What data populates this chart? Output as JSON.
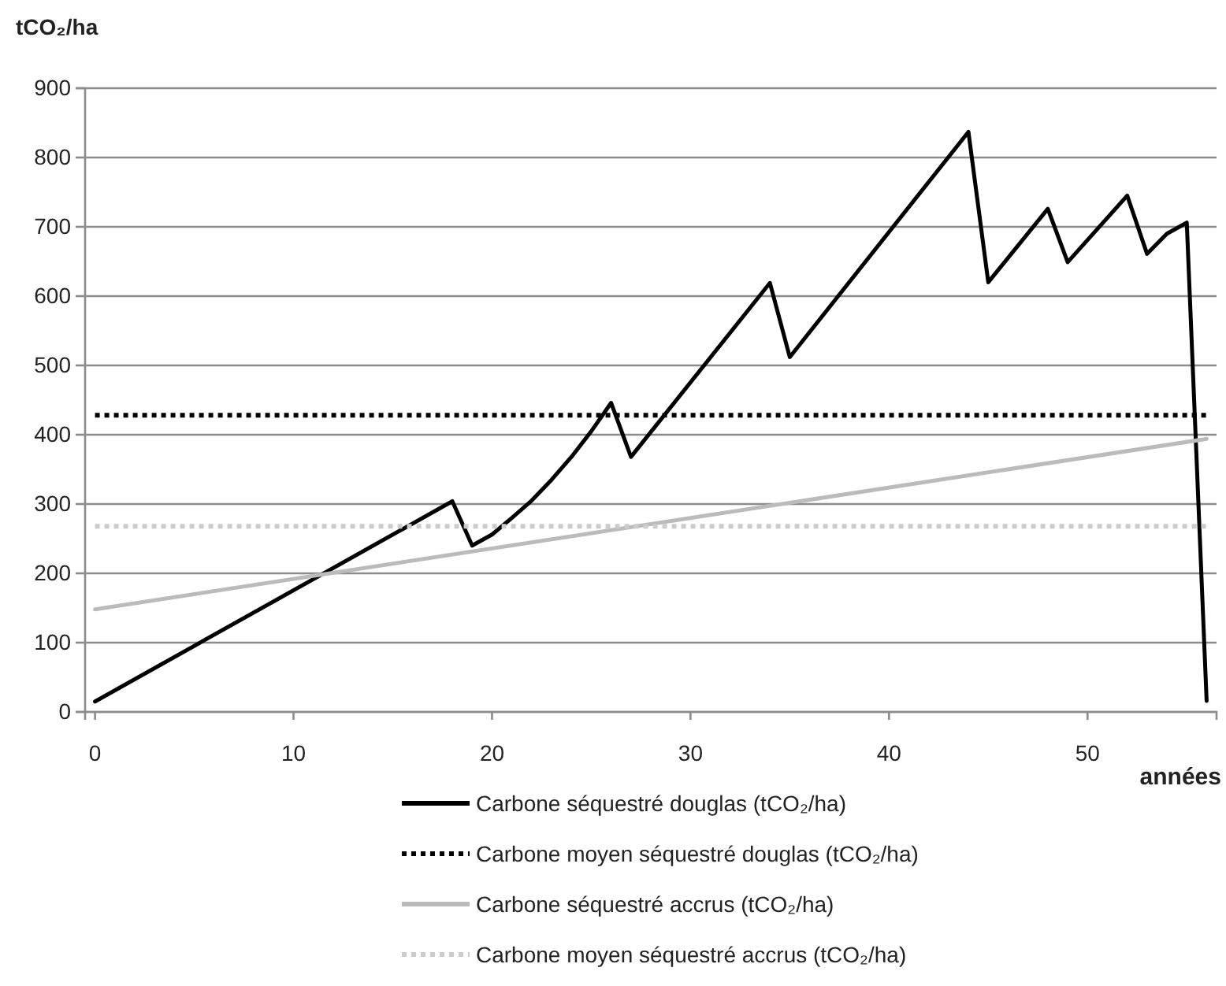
{
  "chart_data": {
    "type": "line",
    "xlabel": "années",
    "ylabel": "tCO₂/ha",
    "xlim": [
      -0.5,
      56.5
    ],
    "xticks": [
      0,
      10,
      20,
      30,
      40,
      50
    ],
    "ylim": [
      0,
      900
    ],
    "yticks": [
      0,
      100,
      200,
      300,
      400,
      500,
      600,
      700,
      800,
      900
    ],
    "grid": "y",
    "legend": "bottom",
    "marker": "none",
    "series": [
      {
        "name": "Carbone séquestré douglas (tCO₂/ha)",
        "color": "#000000",
        "line_style": "solid",
        "x": [
          0,
          18,
          19,
          20,
          21,
          22,
          23,
          24,
          25,
          26,
          27,
          34,
          35,
          44,
          45,
          48,
          49,
          52,
          53,
          54,
          55,
          56
        ],
        "values": [
          15,
          304,
          240,
          256,
          280,
          305,
          335,
          368,
          405,
          446,
          368,
          619,
          512,
          837,
          620,
          726,
          649,
          745,
          661,
          690,
          706,
          16
        ]
      },
      {
        "name": "Carbone moyen séquestré douglas (tCO₂/ha)",
        "color": "#000000",
        "line_style": "dotted",
        "x": [
          0,
          56
        ],
        "values": [
          428,
          428
        ]
      },
      {
        "name": "Carbone séquestré accrus (tCO₂/ha)",
        "color": "#bbbbbb",
        "line_style": "solid",
        "x": [
          0,
          56
        ],
        "values": [
          148,
          394
        ]
      },
      {
        "name": "Carbone moyen séquestré accrus (tCO₂/ha)",
        "color": "#cccccc",
        "line_style": "dotted",
        "x": [
          0,
          56
        ],
        "values": [
          268,
          268
        ]
      }
    ]
  }
}
